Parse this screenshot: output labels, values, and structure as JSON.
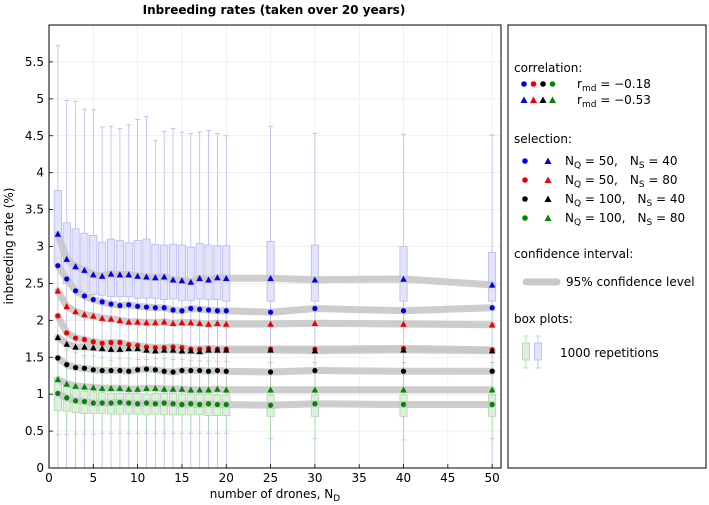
{
  "chart_data": {
    "type": "line",
    "title": "Inbreeding rates (taken over 20 years)",
    "xlabel": "number of drones, N",
    "xlabel_subscript": "D",
    "ylabel": "inbreeding rate (%)",
    "xlim": [
      0,
      51
    ],
    "ylim": [
      0,
      6
    ],
    "x_ticks": [
      0,
      5,
      10,
      15,
      20,
      25,
      30,
      35,
      40,
      45,
      50
    ],
    "y_ticks": [
      0,
      0.5,
      1,
      1.5,
      2,
      2.5,
      3,
      3.5,
      4,
      4.5,
      5,
      5.5
    ],
    "grid": true,
    "legend_position": "right",
    "x": [
      1,
      2,
      3,
      4,
      5,
      6,
      7,
      8,
      9,
      10,
      11,
      12,
      13,
      14,
      15,
      16,
      17,
      18,
      19,
      20,
      25,
      30,
      40,
      50
    ],
    "series": [
      {
        "key": "s1",
        "color": "#0000ee",
        "marker": "circle",
        "values": [
          2.74,
          2.56,
          2.4,
          2.33,
          2.28,
          2.25,
          2.22,
          2.2,
          2.21,
          2.19,
          2.18,
          2.17,
          2.17,
          2.14,
          2.13,
          2.16,
          2.15,
          2.14,
          2.13,
          2.13,
          2.11,
          2.16,
          2.13,
          2.17
        ]
      },
      {
        "key": "s2",
        "color": "#0000ee",
        "marker": "triangle",
        "values": [
          3.17,
          2.83,
          2.73,
          2.68,
          2.62,
          2.6,
          2.63,
          2.62,
          2.62,
          2.6,
          2.59,
          2.58,
          2.59,
          2.55,
          2.54,
          2.52,
          2.57,
          2.55,
          2.58,
          2.57,
          2.57,
          2.55,
          2.56,
          2.48
        ]
      },
      {
        "key": "s3",
        "color": "#ee0000",
        "marker": "circle",
        "values": [
          2.06,
          1.83,
          1.76,
          1.74,
          1.71,
          1.69,
          1.7,
          1.7,
          1.67,
          1.66,
          1.64,
          1.63,
          1.63,
          1.64,
          1.63,
          1.61,
          1.61,
          1.62,
          1.61,
          1.61,
          1.61,
          1.61,
          1.62,
          1.6
        ]
      },
      {
        "key": "s4",
        "color": "#ee0000",
        "marker": "triangle",
        "values": [
          2.4,
          2.19,
          2.12,
          2.08,
          2.06,
          2.03,
          2.02,
          2.0,
          1.98,
          1.98,
          1.97,
          1.97,
          1.98,
          1.96,
          1.97,
          1.97,
          1.96,
          1.95,
          1.96,
          1.95,
          1.95,
          1.96,
          1.95,
          1.94
        ]
      },
      {
        "key": "s5",
        "color": "#000000",
        "marker": "circle",
        "values": [
          1.49,
          1.4,
          1.36,
          1.35,
          1.33,
          1.32,
          1.32,
          1.32,
          1.31,
          1.33,
          1.34,
          1.33,
          1.31,
          1.3,
          1.32,
          1.32,
          1.32,
          1.31,
          1.32,
          1.31,
          1.3,
          1.32,
          1.31,
          1.31
        ]
      },
      {
        "key": "s6",
        "color": "#000000",
        "marker": "triangle",
        "values": [
          1.77,
          1.68,
          1.64,
          1.64,
          1.63,
          1.62,
          1.61,
          1.61,
          1.62,
          1.62,
          1.6,
          1.59,
          1.6,
          1.6,
          1.59,
          1.59,
          1.58,
          1.6,
          1.6,
          1.6,
          1.6,
          1.59,
          1.6,
          1.59
        ]
      },
      {
        "key": "s7",
        "color": "#008800",
        "marker": "circle",
        "values": [
          1.01,
          0.95,
          0.91,
          0.9,
          0.88,
          0.88,
          0.88,
          0.89,
          0.88,
          0.87,
          0.88,
          0.87,
          0.88,
          0.87,
          0.86,
          0.87,
          0.86,
          0.87,
          0.86,
          0.86,
          0.85,
          0.87,
          0.86,
          0.86
        ]
      },
      {
        "key": "s8",
        "color": "#008800",
        "marker": "triangle",
        "values": [
          1.2,
          1.14,
          1.11,
          1.1,
          1.09,
          1.08,
          1.08,
          1.08,
          1.07,
          1.07,
          1.08,
          1.08,
          1.07,
          1.07,
          1.07,
          1.06,
          1.06,
          1.06,
          1.07,
          1.06,
          1.06,
          1.06,
          1.06,
          1.06
        ]
      }
    ],
    "blue_box": {
      "q1": [
        2.74,
        2.5,
        2.4,
        2.38,
        2.35,
        2.34,
        2.32,
        2.32,
        2.32,
        2.3,
        2.3,
        2.3,
        2.28,
        2.29,
        2.27,
        2.27,
        2.29,
        2.28,
        2.28,
        2.26,
        2.26,
        2.26,
        2.26,
        2.26
      ],
      "q3": [
        3.76,
        3.32,
        3.24,
        3.18,
        3.15,
        3.06,
        3.1,
        3.08,
        3.05,
        3.08,
        3.1,
        3.03,
        3.02,
        3.03,
        3.02,
        2.99,
        3.04,
        3.02,
        3.01,
        3.01,
        3.07,
        3.02,
        3.0,
        2.92
      ],
      "whisker_high": [
        5.72,
        4.98,
        4.97,
        4.86,
        4.85,
        4.62,
        4.63,
        4.6,
        4.65,
        4.72,
        4.76,
        4.44,
        4.56,
        4.6,
        4.55,
        4.53,
        4.55,
        4.57,
        4.53,
        4.5,
        4.63,
        4.53,
        4.52,
        4.51
      ],
      "whisker_low": [
        0,
        0,
        0,
        0,
        0,
        0,
        0,
        0,
        0,
        0,
        0,
        0,
        0,
        0,
        0,
        0,
        0,
        0,
        0,
        0,
        0,
        0,
        0,
        0
      ]
    },
    "green_box": {
      "q1": [
        0.78,
        0.77,
        0.75,
        0.74,
        0.74,
        0.74,
        0.73,
        0.73,
        0.73,
        0.73,
        0.72,
        0.73,
        0.72,
        0.72,
        0.72,
        0.72,
        0.72,
        0.71,
        0.71,
        0.71,
        0.7,
        0.7,
        0.7,
        0.7
      ],
      "q3": [
        1.22,
        1.1,
        1.07,
        1.04,
        1.03,
        1.02,
        1.01,
        1.01,
        1.01,
        1.01,
        1.0,
        1.01,
        1.01,
        1.01,
        1.0,
        1.0,
        1.0,
        1.0,
        0.99,
        0.99,
        0.99,
        0.99,
        0.99,
        0.99
      ],
      "whisker_high": [
        1.72,
        1.6,
        1.56,
        1.52,
        1.52,
        1.5,
        1.46,
        1.48,
        1.48,
        1.47,
        1.47,
        1.48,
        1.48,
        1.47,
        1.47,
        1.46,
        1.45,
        1.45,
        1.44,
        1.44,
        1.43,
        1.43,
        1.43,
        1.43
      ],
      "whisker_low": [
        0.45,
        0.45,
        0.46,
        0.46,
        0.46,
        0.47,
        0.47,
        0.47,
        0.47,
        0.47,
        0.47,
        0.47,
        0.47,
        0.47,
        0.47,
        0.47,
        0.47,
        0.47,
        0.47,
        0.47,
        0.4,
        0.4,
        0.38,
        0.4
      ]
    },
    "legend": {
      "correlation_heading": "correlation:",
      "corr_rows": [
        {
          "label": "r",
          "sub": "md",
          "value": "= −0.18",
          "marker": "circle"
        },
        {
          "label": "r",
          "sub": "md",
          "value": "= −0.53",
          "marker": "triangle"
        }
      ],
      "selection_heading": "selection:",
      "selection_rows": [
        {
          "color": "#0000ee",
          "nq": "50,",
          "ns": "40"
        },
        {
          "color": "#ee0000",
          "nq": "50,",
          "ns": "80"
        },
        {
          "color": "#000000",
          "nq": "100,",
          "ns": "40"
        },
        {
          "color": "#008800",
          "nq": "100,",
          "ns": "80"
        }
      ],
      "nq_label": "N",
      "nq_sub": "Q",
      "ns_label": "N",
      "ns_sub": "S",
      "confidence_heading": "confidence interval:",
      "confidence_label": "95% confidence level",
      "boxplot_heading": "box plots:",
      "boxplot_label": "1000 repetitions"
    }
  }
}
